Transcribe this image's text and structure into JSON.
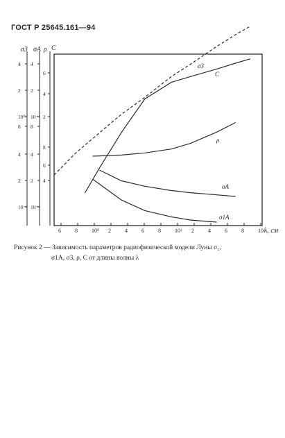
{
  "header": {
    "doc": "ГОСТ Р 25645.161—94"
  },
  "caption": {
    "line1": "Рисунок 2 — Зависимость параметров радиофизической модели Луны σ₁,",
    "line2": "σ1A, σ3, ρ, C от длины волны λ"
  },
  "chart_data": {
    "type": "line",
    "title": "",
    "xlabel": "λ, см",
    "xscale": "log",
    "xlim": [
      5,
      120
    ],
    "x_ticks": [
      "6",
      "8",
      "10⁰",
      "2",
      "4",
      "6",
      "8",
      "10¹",
      "2",
      "4",
      "6",
      "8",
      "10²"
    ],
    "y_axes": [
      {
        "label": "σ3",
        "ticks": [
          "4",
          "2",
          "10⁰",
          "8",
          "4",
          "2",
          "10⁻¹"
        ]
      },
      {
        "label": "σA",
        "ticks": [
          "4",
          "2",
          "10⁻¹",
          "8",
          "4",
          "2",
          "10⁻²"
        ]
      },
      {
        "label": "ρ",
        "ticks": [
          "6",
          "4",
          "2",
          "8",
          "6",
          "4"
        ]
      },
      {
        "label": "C",
        "ticks": [
          "6",
          "4",
          "2",
          "10⁰",
          "6",
          "4",
          "2"
        ]
      }
    ],
    "series": [
      {
        "name": "σ3",
        "x": [
          5,
          7,
          10,
          14,
          20,
          30,
          40,
          60,
          80,
          100
        ],
        "y": [
          0.22,
          0.34,
          0.5,
          0.72,
          1.0,
          1.5,
          1.9,
          2.7,
          3.4,
          4.0
        ]
      },
      {
        "name": "C",
        "x": [
          8,
          10,
          14,
          20,
          30,
          40,
          60,
          80,
          100
        ],
        "y": [
          0.9,
          1.3,
          2.2,
          3.6,
          4.6,
          5.0,
          5.6,
          6.1,
          6.5
        ]
      },
      {
        "name": "ρ",
        "x": [
          9,
          14,
          20,
          30,
          40,
          60,
          80
        ],
        "y": [
          0.58,
          0.6,
          0.64,
          0.72,
          0.85,
          1.2,
          1.6
        ]
      },
      {
        "name": "σA",
        "x": [
          10,
          14,
          20,
          30,
          40,
          60,
          80
        ],
        "y": [
          0.08,
          0.06,
          0.05,
          0.042,
          0.038,
          0.034,
          0.031
        ]
      },
      {
        "name": "σ1A",
        "x": [
          9,
          14,
          20,
          30,
          40,
          60
        ],
        "y": [
          0.05,
          0.03,
          0.02,
          0.014,
          0.011,
          0.009
        ]
      }
    ],
    "grid": false,
    "legend": "labels on curves"
  },
  "colors": {
    "ink": "#2a2a2a",
    "paper": "#ffffff"
  }
}
